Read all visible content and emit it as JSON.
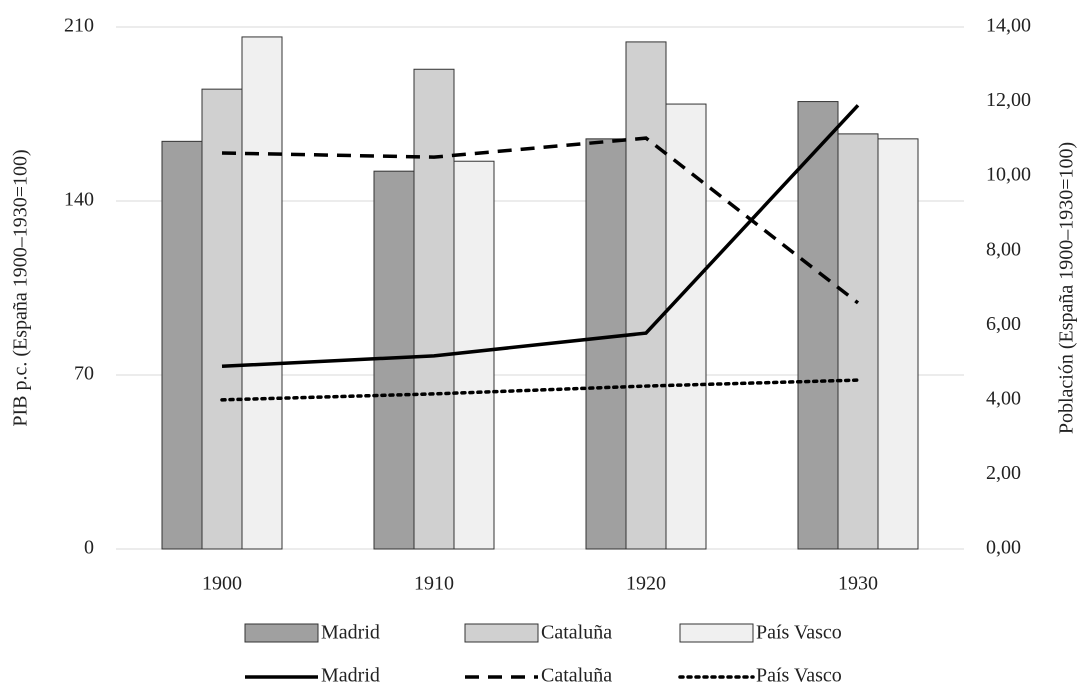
{
  "chart_data": {
    "type": "combo",
    "categories": [
      "1900",
      "1910",
      "1920",
      "1930"
    ],
    "ylabel": "PIB p.c. (España 1900–1930=100)",
    "y2label": "Población (España 1900–1930=100)",
    "ylim": [
      0,
      210
    ],
    "yticks": [
      0,
      70,
      140,
      210
    ],
    "y2lim": [
      0,
      14
    ],
    "y2ticks": [
      {
        "value": 0,
        "label": "0,00"
      },
      {
        "value": 2,
        "label": "2,00"
      },
      {
        "value": 4,
        "label": "4,00"
      },
      {
        "value": 6,
        "label": "6,00"
      },
      {
        "value": 8,
        "label": "8,00"
      },
      {
        "value": 10,
        "label": "10,00"
      },
      {
        "value": 12,
        "label": "12,00"
      },
      {
        "value": 14,
        "label": "14,00"
      }
    ],
    "grid": true,
    "legend": "bottom",
    "series": [
      {
        "name": "Madrid",
        "type": "bar",
        "color": "#a0a0a0",
        "values": [
          164,
          152,
          165,
          180
        ]
      },
      {
        "name": "Cataluña",
        "type": "bar",
        "color": "#d0d0d0",
        "values": [
          185,
          193,
          204,
          167
        ]
      },
      {
        "name": "País Vasco",
        "type": "bar",
        "color": "#f0f0f0",
        "values": [
          206,
          156,
          179,
          165
        ]
      },
      {
        "name": "Madrid",
        "type": "line",
        "axis": "y2",
        "color": "#000000",
        "dash": "solid",
        "values": [
          4.9,
          5.18,
          5.79,
          11.9
        ]
      },
      {
        "name": "Cataluña",
        "type": "line",
        "axis": "y2",
        "color": "#000000",
        "dash": "dashed",
        "values": [
          10.62,
          10.51,
          11.02,
          6.6
        ]
      },
      {
        "name": "País Vasco",
        "type": "line",
        "axis": "y2",
        "color": "#000000",
        "dash": "dotted",
        "values": [
          4.0,
          4.16,
          4.37,
          4.53
        ]
      }
    ]
  }
}
